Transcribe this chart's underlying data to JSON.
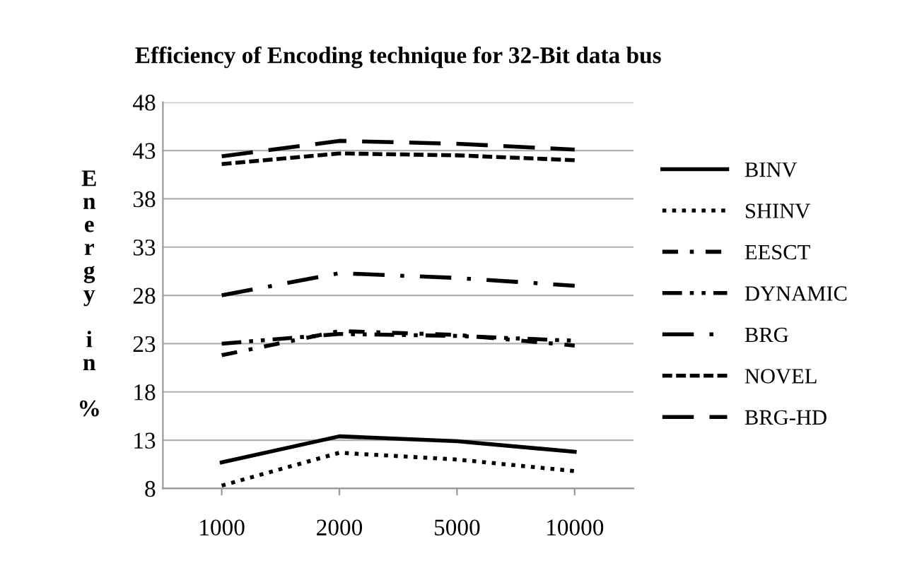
{
  "chart_data": {
    "type": "line",
    "title": "Efficiency of Encoding technique for 32-Bit data bus",
    "ylabel": "Energy in %",
    "categories": [
      "1000",
      "2000",
      "5000",
      "10000"
    ],
    "series": [
      {
        "name": "BINV",
        "color": "#000000",
        "line_style": "solid",
        "values": [
          10.7,
          13.4,
          12.9,
          11.8
        ]
      },
      {
        "name": "SHINV",
        "color": "#000000",
        "line_style": "dotted",
        "values": [
          8.3,
          11.7,
          11.0,
          9.8
        ]
      },
      {
        "name": "EESCT",
        "color": "#000000",
        "line_style": "dashdot",
        "values": [
          21.8,
          24.3,
          23.9,
          22.8
        ]
      },
      {
        "name": "DYNAMIC",
        "color": "#000000",
        "line_style": "dashdotdot",
        "values": [
          23.0,
          24.0,
          23.8,
          23.3
        ]
      },
      {
        "name": "BRG",
        "color": "#000000",
        "line_style": "longdashdot",
        "values": [
          28.0,
          30.3,
          29.8,
          29.0
        ]
      },
      {
        "name": "NOVEL",
        "color": "#000000",
        "line_style": "dashed",
        "values": [
          41.6,
          42.7,
          42.5,
          42.0
        ]
      },
      {
        "name": "BRG-HD",
        "color": "#000000",
        "line_style": "longdash",
        "values": [
          42.4,
          44.0,
          43.7,
          43.1
        ]
      }
    ],
    "ylim": [
      8,
      48
    ],
    "yticks": [
      8,
      13,
      18,
      23,
      28,
      33,
      38,
      43,
      48
    ],
    "grid": "y",
    "legend": "right",
    "marker": "none"
  }
}
